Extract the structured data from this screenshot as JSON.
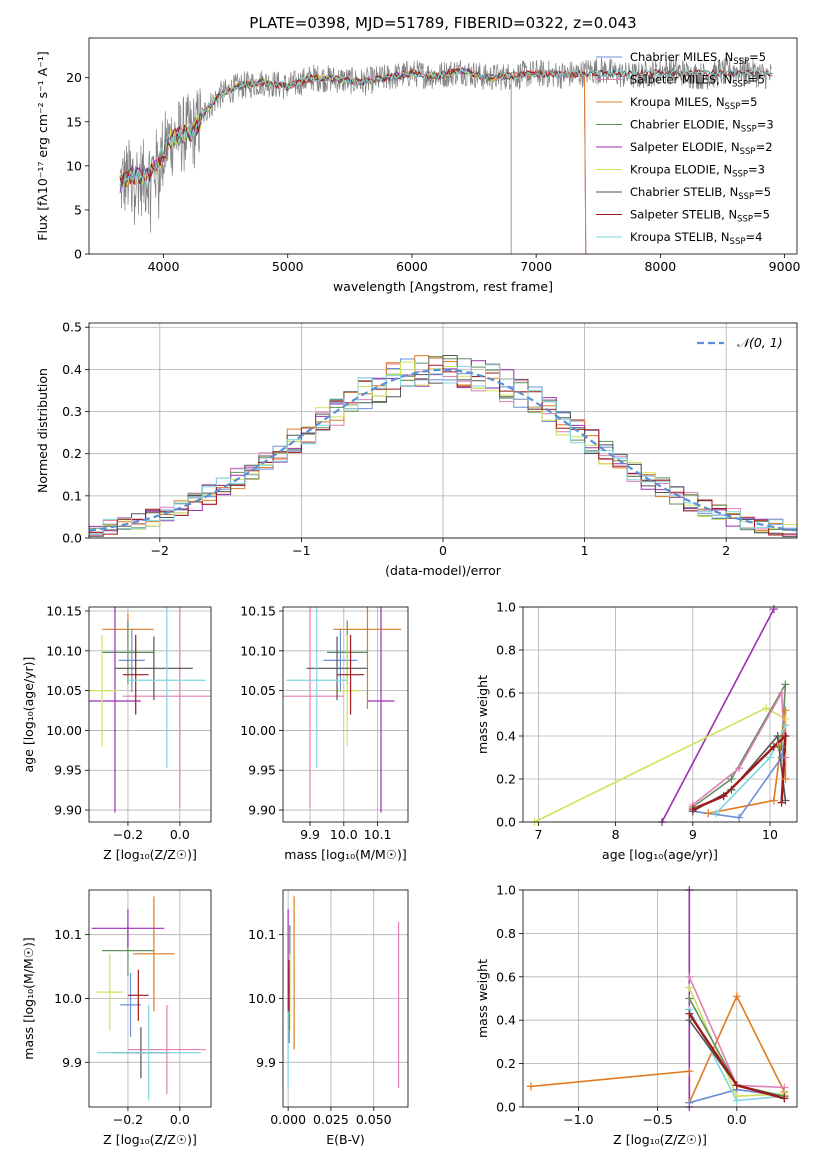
{
  "colors": {
    "chabrier_miles": "#6a8fd8",
    "salpeter_miles": "#e17fb7",
    "kroupa_miles": "#e07b22",
    "chabrier_elodie": "#5f8f5f",
    "salpeter_elodie": "#9b30b2",
    "kroupa_elodie": "#cfe35a",
    "chabrier_stelib": "#555555",
    "salpeter_stelib": "#a01818",
    "kroupa_stelib": "#80d6dc",
    "data_spectrum": "#808080",
    "normal_curve": "#5b8fd6"
  },
  "chart_data": [
    {
      "id": "spectrum",
      "type": "line",
      "title": "PLATE=0398, MJD=51789, FIBERID=0322, z=0.043",
      "xlabel": "wavelength [Angstrom, rest frame]",
      "ylabel": "Flux [fλ10⁻¹⁷ erg cm⁻² s⁻¹ A⁻¹]",
      "xlim": [
        3400,
        9100
      ],
      "ylim": [
        0,
        24.5
      ],
      "xticks": [
        4000,
        5000,
        6000,
        7000,
        8000,
        9000
      ],
      "yticks": [
        0,
        5,
        10,
        15,
        20
      ],
      "grid": false,
      "legend_position": "right",
      "continuum": {
        "x": [
          3650,
          3750,
          3850,
          3950,
          4050,
          4150,
          4250,
          4350,
          4450,
          4600,
          4800,
          5000,
          5200,
          5400,
          5600,
          5800,
          6000,
          6200,
          6400,
          6600,
          6800,
          7000,
          7200,
          7400
        ],
        "y": [
          8.0,
          9.0,
          8.5,
          10.0,
          13.0,
          13.5,
          14.0,
          16.5,
          18.0,
          19.0,
          19.5,
          19.0,
          20.0,
          19.8,
          19.5,
          20.0,
          20.5,
          20.2,
          20.8,
          20.0,
          20.2,
          20.5,
          20.3,
          20.5
        ]
      },
      "series": [
        {
          "name": "Chabrier MILES, N_SSP=5",
          "label_main": "Chabrier MILES, N",
          "label_sub": "SSP",
          "label_end": "=5",
          "color_key": "chabrier_miles",
          "x_end": 7400
        },
        {
          "name": "Salpeter MILES, N_SSP=5",
          "label_main": "Salpeter MILES, N",
          "label_sub": "SSP",
          "label_end": "=5",
          "color_key": "salpeter_miles",
          "x_end": 7400
        },
        {
          "name": "Kroupa MILES, N_SSP=5",
          "label_main": "Kroupa MILES, N",
          "label_sub": "SSP",
          "label_end": "=5",
          "color_key": "kroupa_miles",
          "x_end": 7400
        },
        {
          "name": "Chabrier ELODIE, N_SSP=3",
          "label_main": "Chabrier ELODIE, N",
          "label_sub": "SSP",
          "label_end": "=3",
          "color_key": "chabrier_elodie",
          "x_end": 6800
        },
        {
          "name": "Salpeter ELODIE, N_SSP=2",
          "label_main": "Salpeter ELODIE, N",
          "label_sub": "SSP",
          "label_end": "=2",
          "color_key": "salpeter_elodie",
          "x_end": 6800
        },
        {
          "name": "Kroupa ELODIE, N_SSP=3",
          "label_main": "Kroupa ELODIE, N",
          "label_sub": "SSP",
          "label_end": "=3",
          "color_key": "kroupa_elodie",
          "x_end": 6800
        },
        {
          "name": "Chabrier STELIB, N_SSP=5",
          "label_main": "Chabrier STELIB, N",
          "label_sub": "SSP",
          "label_end": "=5",
          "color_key": "chabrier_stelib",
          "x_end": 8900
        },
        {
          "name": "Salpeter STELIB, N_SSP=5",
          "label_main": "Salpeter STELIB, N",
          "label_sub": "SSP",
          "label_end": "=5",
          "color_key": "salpeter_stelib",
          "x_end": 8900
        },
        {
          "name": "Kroupa STELIB, N_SSP=4",
          "label_main": "Kroupa STELIB, N",
          "label_sub": "SSP",
          "label_end": "=4",
          "color_key": "kroupa_stelib",
          "x_end": 8900
        }
      ]
    },
    {
      "id": "residuals",
      "type": "line",
      "xlabel": "(data-model)/error",
      "ylabel": "Normed distribution",
      "xlim": [
        -2.5,
        2.5
      ],
      "ylim": [
        0,
        0.51
      ],
      "xticks": [
        -2,
        -1,
        0,
        1,
        2
      ],
      "yticks": [
        0.0,
        0.1,
        0.2,
        0.3,
        0.4,
        0.5
      ],
      "grid": true,
      "legend_position": "top-right",
      "reference_curve": {
        "name": "𝒩(0, 1)",
        "mean": 0,
        "sigma": 1
      },
      "histogram_bin_width": 0.1,
      "histogram_count": 9
    },
    {
      "id": "age_vs_Z",
      "type": "scatter",
      "xlabel": "Z [log₁₀(Z/Z☉)]",
      "ylabel": "age  [log₁₀(age/yr)]",
      "xlim": [
        -0.35,
        0.12
      ],
      "ylim": [
        9.885,
        10.155
      ],
      "xticks": [
        -0.2,
        0.0
      ],
      "yticks": [
        9.9,
        9.95,
        10.0,
        10.05,
        10.1,
        10.15
      ],
      "grid": true,
      "points": [
        {
          "color_key": "chabrier_miles",
          "x": -0.185,
          "y": 10.088,
          "xerr": 0.05,
          "yerr": 0.04
        },
        {
          "color_key": "salpeter_miles",
          "x": 0.0,
          "y": 10.043,
          "xerr": 0.22,
          "yerr": 0.14
        },
        {
          "color_key": "kroupa_miles",
          "x": -0.2,
          "y": 10.127,
          "xerr": 0.1,
          "yerr": 0.02
        },
        {
          "color_key": "chabrier_elodie",
          "x": -0.2,
          "y": 10.098,
          "xerr": 0.1,
          "yerr": 0.04
        },
        {
          "color_key": "salpeter_elodie",
          "x": -0.25,
          "y": 10.037,
          "xerr": 0.1,
          "yerr": 0.14
        },
        {
          "color_key": "kroupa_elodie",
          "x": -0.3,
          "y": 10.05,
          "xerr": 0.06,
          "yerr": 0.07
        },
        {
          "color_key": "chabrier_stelib",
          "x": -0.1,
          "y": 10.078,
          "xerr": 0.15,
          "yerr": 0.04
        },
        {
          "color_key": "salpeter_stelib",
          "x": -0.17,
          "y": 10.07,
          "xerr": 0.05,
          "yerr": 0.05
        },
        {
          "color_key": "kroupa_stelib",
          "x": -0.05,
          "y": 10.063,
          "xerr": 0.15,
          "yerr": 0.11
        }
      ]
    },
    {
      "id": "age_vs_mass",
      "type": "scatter",
      "xlabel": "mass [log₁₀(M/M☉)]",
      "ylabel": "",
      "xlim": [
        9.82,
        10.19
      ],
      "ylim": [
        9.885,
        10.155
      ],
      "xticks": [
        9.9,
        10.0,
        10.1
      ],
      "yticks": [
        9.9,
        9.95,
        10.0,
        10.05,
        10.1,
        10.15
      ],
      "grid": true,
      "points": [
        {
          "color_key": "chabrier_miles",
          "x": 9.99,
          "y": 10.088,
          "xerr": 0.05,
          "yerr": 0.04
        },
        {
          "color_key": "salpeter_miles",
          "x": 9.9,
          "y": 10.043,
          "xerr": 0.1,
          "yerr": 0.14
        },
        {
          "color_key": "kroupa_miles",
          "x": 10.07,
          "y": 10.127,
          "xerr": 0.1,
          "yerr": 0.1
        },
        {
          "color_key": "chabrier_elodie",
          "x": 10.01,
          "y": 10.098,
          "xerr": 0.06,
          "yerr": 0.04
        },
        {
          "color_key": "salpeter_elodie",
          "x": 10.11,
          "y": 10.037,
          "xerr": 0.04,
          "yerr": 0.14
        },
        {
          "color_key": "kroupa_elodie",
          "x": 10.01,
          "y": 10.05,
          "xerr": 0.04,
          "yerr": 0.07
        },
        {
          "color_key": "chabrier_stelib",
          "x": 9.98,
          "y": 10.078,
          "xerr": 0.09,
          "yerr": 0.04
        },
        {
          "color_key": "salpeter_stelib",
          "x": 10.02,
          "y": 10.07,
          "xerr": 0.04,
          "yerr": 0.05
        },
        {
          "color_key": "kroupa_stelib",
          "x": 9.92,
          "y": 10.063,
          "xerr": 0.09,
          "yerr": 0.11
        }
      ]
    },
    {
      "id": "mass_vs_Z",
      "type": "scatter",
      "xlabel": "Z [log₁₀(Z/Z☉)]",
      "ylabel": "mass [log₁₀(M/M☉)]",
      "xlim": [
        -0.35,
        0.12
      ],
      "ylim": [
        9.83,
        10.17
      ],
      "xticks": [
        -0.2,
        0.0
      ],
      "yticks": [
        9.9,
        10.0,
        10.1
      ],
      "grid": true,
      "points": [
        {
          "color_key": "chabrier_miles",
          "x": -0.19,
          "y": 9.99,
          "xerr": 0.04,
          "yerr": 0.05
        },
        {
          "color_key": "salpeter_miles",
          "x": -0.05,
          "y": 9.92,
          "xerr": 0.15,
          "yerr": 0.07
        },
        {
          "color_key": "kroupa_miles",
          "x": -0.1,
          "y": 10.07,
          "xerr": 0.08,
          "yerr": 0.09
        },
        {
          "color_key": "chabrier_elodie",
          "x": -0.2,
          "y": 10.075,
          "xerr": 0.1,
          "yerr": 0.04
        },
        {
          "color_key": "salpeter_elodie",
          "x": -0.2,
          "y": 10.11,
          "xerr": 0.14,
          "yerr": 0.03
        },
        {
          "color_key": "kroupa_elodie",
          "x": -0.27,
          "y": 10.01,
          "xerr": 0.05,
          "yerr": 0.06
        },
        {
          "color_key": "chabrier_stelib",
          "x": -0.15,
          "y": 9.915,
          "xerr": 0.11,
          "yerr": 0.04
        },
        {
          "color_key": "salpeter_stelib",
          "x": -0.16,
          "y": 10.005,
          "xerr": 0.04,
          "yerr": 0.04
        },
        {
          "color_key": "kroupa_stelib",
          "x": -0.12,
          "y": 9.915,
          "xerr": 0.2,
          "yerr": 0.075
        }
      ]
    },
    {
      "id": "mass_vs_ebv",
      "type": "scatter",
      "xlabel": "E(B-V)",
      "ylabel": "",
      "xlim": [
        -0.003,
        0.07
      ],
      "ylim": [
        9.83,
        10.17
      ],
      "xticks": [
        0.0,
        0.025,
        0.05
      ],
      "xtick_labels": [
        "0.000",
        "0.025",
        "0.050"
      ],
      "yticks": [
        9.9,
        10.0,
        10.1
      ],
      "grid": true,
      "points": [
        {
          "color_key": "chabrier_miles",
          "x": 0.0,
          "y": 9.99,
          "xerr": 0,
          "yerr": 0.05
        },
        {
          "color_key": "salpeter_miles",
          "x": 0.0645,
          "y": 9.99,
          "xerr": 0,
          "yerr": 0.13
        },
        {
          "color_key": "kroupa_miles",
          "x": 0.0035,
          "y": 10.04,
          "xerr": 0,
          "yerr": 0.12
        },
        {
          "color_key": "chabrier_elodie",
          "x": 0.001,
          "y": 10.075,
          "xerr": 0,
          "yerr": 0.04
        },
        {
          "color_key": "salpeter_elodie",
          "x": 0.0,
          "y": 10.05,
          "xerr": 0,
          "yerr": 0.09
        },
        {
          "color_key": "kroupa_elodie",
          "x": 0.001,
          "y": 10.01,
          "xerr": 0,
          "yerr": 0.06
        },
        {
          "color_key": "chabrier_stelib",
          "x": 0.0005,
          "y": 9.98,
          "xerr": 0,
          "yerr": 0.05
        },
        {
          "color_key": "salpeter_stelib",
          "x": 0.0005,
          "y": 10.02,
          "xerr": 0,
          "yerr": 0.04
        },
        {
          "color_key": "kroupa_stelib",
          "x": 0.0,
          "y": 9.92,
          "xerr": 0,
          "yerr": 0.06
        }
      ]
    },
    {
      "id": "massweight_vs_age",
      "type": "line",
      "xlabel": "age  [log₁₀(age/yr)]",
      "ylabel": "mass weight",
      "xlim": [
        6.8,
        10.35
      ],
      "ylim": [
        0,
        1.0
      ],
      "xticks": [
        7,
        8,
        9,
        10
      ],
      "yticks": [
        0.0,
        0.2,
        0.4,
        0.6,
        0.8,
        1.0
      ],
      "grid": true,
      "series": [
        {
          "color_key": "salpeter_elodie",
          "x": [
            8.6,
            10.05
          ],
          "y": [
            0.0,
            0.99
          ]
        },
        {
          "color_key": "kroupa_elodie",
          "x": [
            6.95,
            9.95,
            10.2,
            10.1
          ],
          "y": [
            0.0,
            0.53,
            0.48,
            0.35
          ]
        },
        {
          "color_key": "chabrier_elodie",
          "x": [
            9.0,
            9.5,
            10.2,
            10.15
          ],
          "y": [
            0.07,
            0.2,
            0.64,
            0.35
          ]
        },
        {
          "color_key": "salpeter_miles",
          "x": [
            9.0,
            9.6,
            10.15,
            10.2
          ],
          "y": [
            0.08,
            0.25,
            0.6,
            0.3
          ]
        },
        {
          "color_key": "kroupa_miles",
          "x": [
            9.2,
            10.05,
            10.2,
            10.2
          ],
          "y": [
            0.04,
            0.1,
            0.52,
            0.2
          ]
        },
        {
          "color_key": "chabrier_miles",
          "x": [
            9.0,
            9.6,
            10.15,
            10.2
          ],
          "y": [
            0.05,
            0.02,
            0.3,
            0.4
          ]
        },
        {
          "color_key": "kroupa_stelib",
          "x": [
            9.3,
            10.0,
            10.2
          ],
          "y": [
            0.04,
            0.3,
            0.45
          ]
        },
        {
          "color_key": "chabrier_stelib",
          "x": [
            9.0,
            9.5,
            10.1,
            10.2
          ],
          "y": [
            0.05,
            0.15,
            0.4,
            0.1
          ]
        },
        {
          "color_key": "salpeter_stelib",
          "x": [
            9.0,
            9.4,
            10.05,
            10.2,
            10.15
          ],
          "y": [
            0.06,
            0.12,
            0.35,
            0.4,
            0.09
          ]
        }
      ]
    },
    {
      "id": "massweight_vs_Z",
      "type": "line",
      "xlabel": "Z [log₁₀(Z/Z☉)]",
      "ylabel": "mass weight",
      "xlim": [
        -1.35,
        0.38
      ],
      "ylim": [
        0,
        1.0
      ],
      "xticks": [
        -1.0,
        -0.5,
        0.0
      ],
      "yticks": [
        0.0,
        0.2,
        0.4,
        0.6,
        0.8,
        1.0
      ],
      "grid": true,
      "series": [
        {
          "color_key": "kroupa_miles",
          "x": [
            -1.3,
            -0.3,
            -0.3,
            0.0,
            0.3,
            0.3
          ],
          "y": [
            0.095,
            0.165,
            0.02,
            0.51,
            0.07,
            0.05
          ]
        },
        {
          "color_key": "salpeter_elodie",
          "x": [
            -0.3,
            -0.3
          ],
          "y": [
            0.0,
            1.0
          ]
        },
        {
          "color_key": "salpeter_miles",
          "x": [
            -0.3,
            0.0,
            0.3
          ],
          "y": [
            0.6,
            0.1,
            0.09
          ]
        },
        {
          "color_key": "chabrier_miles",
          "x": [
            -0.3,
            0.0,
            0.3
          ],
          "y": [
            0.02,
            0.08,
            0.05
          ]
        },
        {
          "color_key": "kroupa_elodie",
          "x": [
            -0.3,
            0.0,
            0.3
          ],
          "y": [
            0.55,
            0.05,
            0.06
          ]
        },
        {
          "color_key": "kroupa_stelib",
          "x": [
            -0.3,
            0.0,
            0.3
          ],
          "y": [
            0.45,
            0.03,
            0.05
          ]
        },
        {
          "color_key": "chabrier_elodie",
          "x": [
            -0.3,
            0.0,
            0.3
          ],
          "y": [
            0.5,
            0.1,
            0.05
          ]
        },
        {
          "color_key": "chabrier_stelib",
          "x": [
            -0.3,
            0.0,
            0.3
          ],
          "y": [
            0.4,
            0.1,
            0.04
          ]
        },
        {
          "color_key": "salpeter_stelib",
          "x": [
            -0.3,
            0.0,
            0.3
          ],
          "y": [
            0.43,
            0.1,
            0.04
          ]
        }
      ]
    }
  ]
}
